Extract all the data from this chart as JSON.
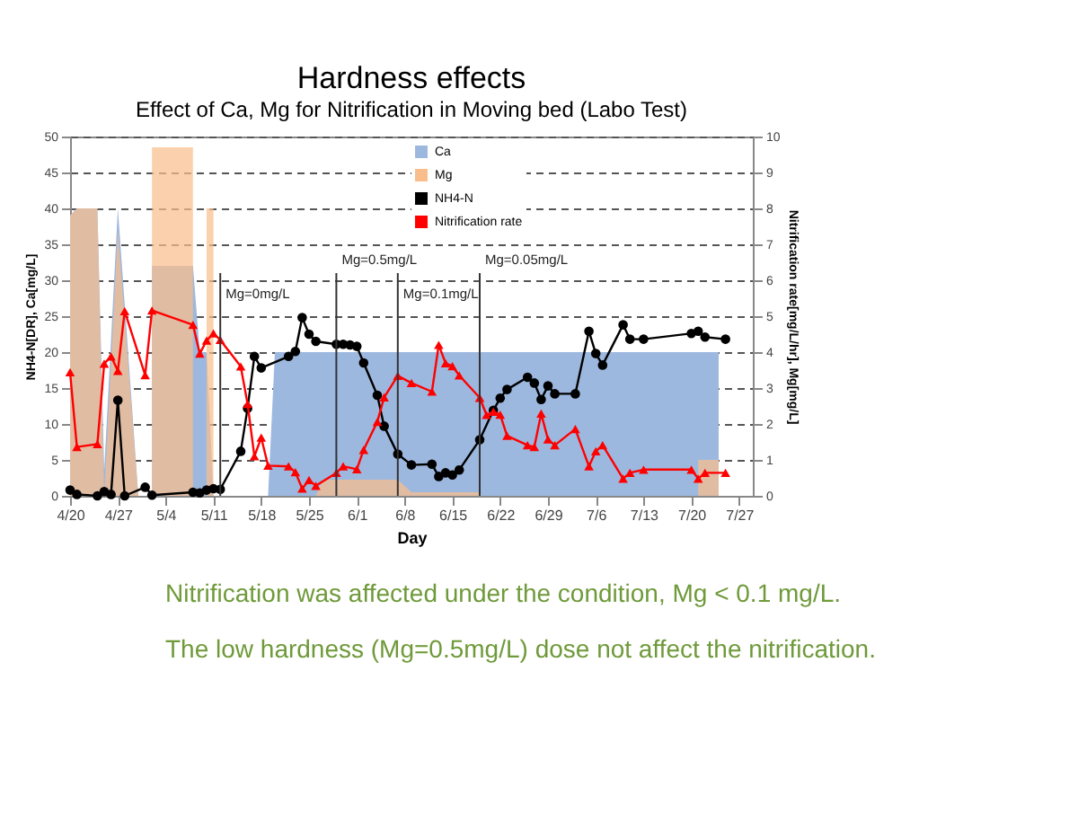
{
  "chart_data": {
    "type": "line",
    "title": "Hardness effects",
    "subtitle": "Effect of Ca, Mg for Nitrification in Moving bed (Labo Test)",
    "xlabel": "Day",
    "ylabel": "NH4-N[DR], Ca[mg/L]",
    "y2label": "Nitrification rate[mg/L/hr], Mg[mg/L]",
    "xlim": [
      "--04-20",
      "--07-29"
    ],
    "xticks": [
      {
        "value": "--04-20",
        "label": "4/20"
      },
      {
        "value": "--04-27",
        "label": "4/27"
      },
      {
        "value": "--05-04",
        "label": "5/4"
      },
      {
        "value": "--05-11",
        "label": "5/11"
      },
      {
        "value": "--05-18",
        "label": "5/18"
      },
      {
        "value": "--05-25",
        "label": "5/25"
      },
      {
        "value": "--06-01",
        "label": "6/1"
      },
      {
        "value": "--06-08",
        "label": "6/8"
      },
      {
        "value": "--06-15",
        "label": "6/15"
      },
      {
        "value": "--06-22",
        "label": "6/22"
      },
      {
        "value": "--06-29",
        "label": "6/29"
      },
      {
        "value": "--07-06",
        "label": "7/6"
      },
      {
        "value": "--07-13",
        "label": "7/13"
      },
      {
        "value": "--07-20",
        "label": "7/20"
      },
      {
        "value": "--07-27",
        "label": "7/27"
      }
    ],
    "ylim": [
      0,
      50
    ],
    "yticks": [
      0,
      5,
      10,
      15,
      20,
      25,
      30,
      35,
      40,
      45,
      50
    ],
    "y2lim": [
      0,
      10
    ],
    "y2ticks": [
      0,
      1,
      2,
      3,
      4,
      5,
      6,
      7,
      8,
      9,
      10
    ],
    "grid": "y",
    "legend": "top",
    "series": [
      {
        "name": "Ca",
        "type": "area",
        "color": "#9db8df",
        "x": [
          "--04-20",
          "--04-21",
          "--04-24",
          "--04-25",
          "--04-27",
          "--04-30",
          "--05-02",
          "--05-02",
          "--05-08",
          "--05-09",
          "--05-10",
          "--05-11",
          "--05-19",
          "--05-20",
          "--07-24",
          "--07-24"
        ],
        "values": [
          39,
          40,
          40,
          3.5,
          40,
          0,
          0,
          32,
          32,
          20,
          20,
          0,
          0,
          20,
          20,
          0
        ]
      },
      {
        "name": "Mg",
        "type": "area",
        "axis": "y2",
        "color": "#f9be8c",
        "x": [
          "--04-20",
          "--04-21",
          "--04-24",
          "--04-25",
          "--04-27",
          "--04-30",
          "--05-02",
          "--05-02",
          "--05-08",
          "--05-08",
          "--05-10",
          "--05-10",
          "--05-11",
          "--05-11",
          "--05-26",
          "--05-27",
          "--06-07",
          "--06-09",
          "--06-19",
          "--06-19",
          "--07-21",
          "--07-21",
          "--07-24",
          "--07-24"
        ],
        "values": [
          7.8,
          8,
          8,
          0,
          7.4,
          0,
          0,
          9.7,
          9.7,
          0,
          0,
          8,
          8,
          0,
          0,
          0.45,
          0.45,
          0.1,
          0.1,
          0,
          0,
          1,
          1,
          0
        ]
      },
      {
        "name": "NH4-N",
        "type": "line",
        "marker": "circle",
        "color": "#000000",
        "x": [
          "--04-20",
          "--04-21",
          "--04-24",
          "--04-25",
          "--04-26",
          "--04-27",
          "--04-28",
          "--05-01",
          "--05-02",
          "--05-08",
          "--05-09",
          "--05-10",
          "--05-11",
          "--05-12",
          "--05-15",
          "--05-16",
          "--05-17",
          "--05-18",
          "--05-22",
          "--05-23",
          "--05-24",
          "--05-25",
          "--05-26",
          "--05-29",
          "--05-30",
          "--05-31",
          "--06-01",
          "--06-02",
          "--06-04",
          "--06-05",
          "--06-07",
          "--06-09",
          "--06-12",
          "--06-13",
          "--06-14",
          "--06-15",
          "--06-16",
          "--06-19",
          "--06-21",
          "--06-22",
          "--06-23",
          "--06-26",
          "--06-27",
          "--06-28",
          "--06-29",
          "--06-30",
          "--07-03",
          "--07-05",
          "--07-06",
          "--07-07",
          "--07-10",
          "--07-11",
          "--07-13",
          "--07-20",
          "--07-21",
          "--07-22",
          "--07-25"
        ],
        "values": [
          0.8,
          0.2,
          0,
          0.6,
          0.2,
          13.3,
          0,
          1.2,
          0.1,
          0.5,
          0.4,
          0.8,
          1.0,
          0.9,
          6.2,
          12.2,
          19.4,
          17.8,
          19.4,
          20.1,
          24.8,
          22.5,
          21.5,
          21.1,
          21.1,
          21.0,
          20.8,
          18.5,
          14.0,
          9.7,
          5.8,
          4.3,
          4.4,
          2.7,
          3.2,
          2.9,
          3.6,
          7.8,
          11.9,
          13.6,
          14.8,
          16.5,
          15.7,
          13.4,
          15.3,
          14.2,
          14.2,
          22.9,
          19.8,
          18.2,
          23.8,
          21.8,
          21.8,
          22.6,
          22.9,
          22.1,
          21.8
        ]
      },
      {
        "name": "Nitrification rate",
        "type": "line",
        "axis": "y2",
        "marker": "triangle",
        "color": "#ff0000",
        "x": [
          "--04-20",
          "--04-21",
          "--04-24",
          "--04-25",
          "--04-26",
          "--04-27",
          "--04-28",
          "--05-01",
          "--05-02",
          "--05-08",
          "--05-09",
          "--05-10",
          "--05-11",
          "--05-12",
          "--05-15",
          "--05-16",
          "--05-17",
          "--05-18",
          "--05-19",
          "--05-22",
          "--05-23",
          "--05-24",
          "--05-25",
          "--05-26",
          "--05-29",
          "--05-30",
          "--06-01",
          "--06-02",
          "--06-04",
          "--06-05",
          "--06-07",
          "--06-09",
          "--06-12",
          "--06-13",
          "--06-14",
          "--06-15",
          "--06-16",
          "--06-19",
          "--06-20",
          "--06-21",
          "--06-22",
          "--06-23",
          "--06-26",
          "--06-27",
          "--06-28",
          "--06-29",
          "--06-30",
          "--07-03",
          "--07-05",
          "--07-06",
          "--07-07",
          "--07-10",
          "--07-11",
          "--07-13",
          "--07-20",
          "--07-21",
          "--07-22",
          "--07-25"
        ],
        "values": [
          3.44,
          1.36,
          1.44,
          3.68,
          3.88,
          3.48,
          5.14,
          3.36,
          5.16,
          4.76,
          3.96,
          4.32,
          4.52,
          4.34,
          3.6,
          2.56,
          1.1,
          1.62,
          0.84,
          0.82,
          0.66,
          0.2,
          0.44,
          0.28,
          0.64,
          0.82,
          0.74,
          1.28,
          2.06,
          2.74,
          3.34,
          3.14,
          2.9,
          4.2,
          3.69,
          3.61,
          3.35,
          2.73,
          2.25,
          2.34,
          2.26,
          1.67,
          1.41,
          1.36,
          2.29,
          1.57,
          1.41,
          1.86,
          0.82,
          1.24,
          1.41,
          0.48,
          0.64,
          0.73,
          0.73,
          0.48,
          0.64,
          0.64
        ]
      }
    ],
    "ref_lines": [
      {
        "axis": "x",
        "value": "--05-12",
        "label": "Mg=0mg/L",
        "color": "#333333"
      },
      {
        "axis": "x",
        "value": "--05-29",
        "label": "Mg=0.5mg/L",
        "color": "#333333"
      },
      {
        "axis": "x",
        "value": "--06-07",
        "label": "Mg=0.1mg/L",
        "color": "#333333"
      },
      {
        "axis": "x",
        "value": "--06-19",
        "label": "Mg=0.05mg/L",
        "color": "#333333"
      }
    ],
    "annotations": [
      "Nitrification was affected under the condition, Mg < 0.1 mg/L.",
      "The low hardness (Mg=0.5mg/L) dose not affect the nitrification."
    ]
  }
}
